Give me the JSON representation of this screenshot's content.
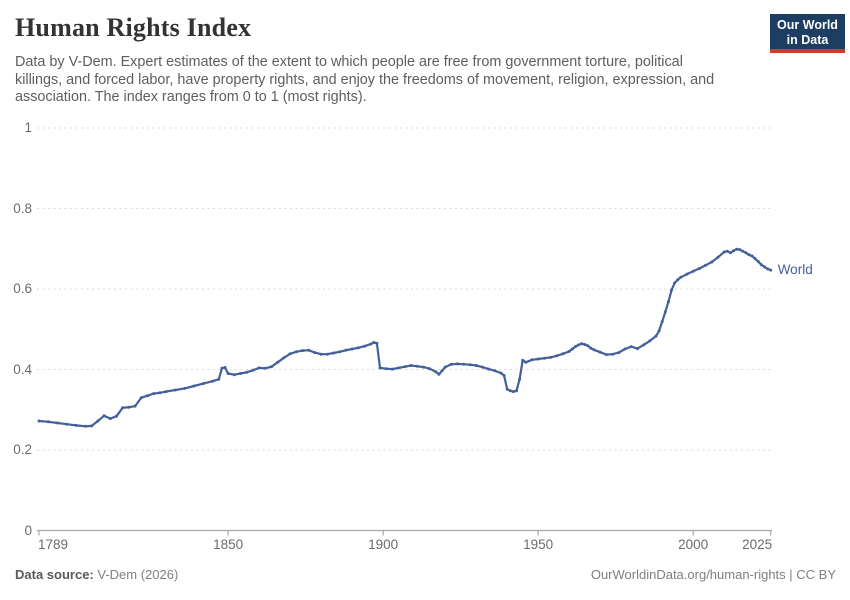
{
  "header": {
    "title": "Human Rights Index",
    "subtitle_lines": [
      "Data by V-Dem. Expert estimates of the extent to which people are free from government torture, political",
      "killings, and forced labor, have property rights, and enjoy the freedoms of movement, religion, expression, and",
      "association. The index ranges from 0 to 1 (most rights)."
    ],
    "logo": {
      "line1": "Our World",
      "line2": "in Data",
      "bg_color": "#1d3d63",
      "accent_color": "#d23a2f"
    }
  },
  "chart_data": {
    "type": "line",
    "title": "Human Rights Index",
    "series_label": "World",
    "xlabel": "",
    "ylabel": "",
    "xlim": [
      1789,
      2025
    ],
    "ylim": [
      0,
      1
    ],
    "x_ticks": [
      1789,
      1850,
      1900,
      1950,
      2000,
      2025
    ],
    "x_tick_labels": [
      "1789",
      "1850",
      "1900",
      "1950",
      "2000",
      "2025"
    ],
    "y_ticks": [
      0,
      0.2,
      0.4,
      0.6,
      0.8,
      1
    ],
    "y_tick_labels": [
      "0",
      "0.2",
      "0.4",
      "0.6",
      "0.8",
      "1"
    ],
    "grid": "horizontal-dashed",
    "legend_position": "end-of-line",
    "line_color": "#44609a",
    "grid_color": "#dadada",
    "axis_color": "#a8a8a8",
    "tick_label_color": "#6b6b6b",
    "points": [
      [
        1789,
        0.272
      ],
      [
        1792,
        0.27
      ],
      [
        1795,
        0.267
      ],
      [
        1798,
        0.264
      ],
      [
        1801,
        0.261
      ],
      [
        1804,
        0.259
      ],
      [
        1806,
        0.26
      ],
      [
        1808,
        0.272
      ],
      [
        1810,
        0.285
      ],
      [
        1812,
        0.278
      ],
      [
        1814,
        0.284
      ],
      [
        1816,
        0.305
      ],
      [
        1818,
        0.306
      ],
      [
        1820,
        0.309
      ],
      [
        1822,
        0.33
      ],
      [
        1824,
        0.335
      ],
      [
        1826,
        0.34
      ],
      [
        1828,
        0.342
      ],
      [
        1830,
        0.345
      ],
      [
        1833,
        0.349
      ],
      [
        1836,
        0.353
      ],
      [
        1839,
        0.359
      ],
      [
        1842,
        0.365
      ],
      [
        1845,
        0.371
      ],
      [
        1847,
        0.376
      ],
      [
        1848,
        0.403
      ],
      [
        1849,
        0.405
      ],
      [
        1850,
        0.39
      ],
      [
        1852,
        0.387
      ],
      [
        1854,
        0.39
      ],
      [
        1856,
        0.393
      ],
      [
        1858,
        0.398
      ],
      [
        1860,
        0.404
      ],
      [
        1862,
        0.403
      ],
      [
        1864,
        0.407
      ],
      [
        1866,
        0.418
      ],
      [
        1868,
        0.429
      ],
      [
        1870,
        0.439
      ],
      [
        1872,
        0.444
      ],
      [
        1874,
        0.447
      ],
      [
        1876,
        0.448
      ],
      [
        1878,
        0.442
      ],
      [
        1880,
        0.438
      ],
      [
        1882,
        0.438
      ],
      [
        1884,
        0.441
      ],
      [
        1886,
        0.444
      ],
      [
        1888,
        0.448
      ],
      [
        1890,
        0.451
      ],
      [
        1892,
        0.454
      ],
      [
        1894,
        0.458
      ],
      [
        1896,
        0.463
      ],
      [
        1897,
        0.467
      ],
      [
        1898,
        0.465
      ],
      [
        1899,
        0.404
      ],
      [
        1901,
        0.402
      ],
      [
        1903,
        0.401
      ],
      [
        1905,
        0.404
      ],
      [
        1907,
        0.407
      ],
      [
        1909,
        0.41
      ],
      [
        1911,
        0.408
      ],
      [
        1913,
        0.406
      ],
      [
        1915,
        0.402
      ],
      [
        1917,
        0.394
      ],
      [
        1918,
        0.388
      ],
      [
        1919,
        0.397
      ],
      [
        1920,
        0.406
      ],
      [
        1922,
        0.413
      ],
      [
        1924,
        0.414
      ],
      [
        1926,
        0.413
      ],
      [
        1928,
        0.412
      ],
      [
        1930,
        0.41
      ],
      [
        1932,
        0.406
      ],
      [
        1934,
        0.401
      ],
      [
        1936,
        0.397
      ],
      [
        1938,
        0.391
      ],
      [
        1939,
        0.385
      ],
      [
        1940,
        0.351
      ],
      [
        1941,
        0.347
      ],
      [
        1942,
        0.345
      ],
      [
        1943,
        0.347
      ],
      [
        1944,
        0.376
      ],
      [
        1945,
        0.423
      ],
      [
        1946,
        0.418
      ],
      [
        1948,
        0.424
      ],
      [
        1950,
        0.426
      ],
      [
        1952,
        0.428
      ],
      [
        1954,
        0.43
      ],
      [
        1956,
        0.434
      ],
      [
        1958,
        0.439
      ],
      [
        1960,
        0.445
      ],
      [
        1961,
        0.451
      ],
      [
        1962,
        0.457
      ],
      [
        1963,
        0.461
      ],
      [
        1964,
        0.464
      ],
      [
        1965,
        0.462
      ],
      [
        1966,
        0.459
      ],
      [
        1967,
        0.453
      ],
      [
        1968,
        0.449
      ],
      [
        1970,
        0.443
      ],
      [
        1972,
        0.437
      ],
      [
        1974,
        0.438
      ],
      [
        1976,
        0.442
      ],
      [
        1978,
        0.451
      ],
      [
        1980,
        0.457
      ],
      [
        1982,
        0.452
      ],
      [
        1984,
        0.461
      ],
      [
        1986,
        0.471
      ],
      [
        1988,
        0.483
      ],
      [
        1989,
        0.496
      ],
      [
        1990,
        0.519
      ],
      [
        1991,
        0.543
      ],
      [
        1992,
        0.568
      ],
      [
        1993,
        0.597
      ],
      [
        1994,
        0.615
      ],
      [
        1995,
        0.623
      ],
      [
        1996,
        0.629
      ],
      [
        1998,
        0.637
      ],
      [
        2000,
        0.644
      ],
      [
        2002,
        0.651
      ],
      [
        2004,
        0.659
      ],
      [
        2006,
        0.667
      ],
      [
        2008,
        0.679
      ],
      [
        2010,
        0.692
      ],
      [
        2011,
        0.694
      ],
      [
        2012,
        0.69
      ],
      [
        2013,
        0.695
      ],
      [
        2014,
        0.699
      ],
      [
        2015,
        0.698
      ],
      [
        2016,
        0.694
      ],
      [
        2017,
        0.69
      ],
      [
        2018,
        0.685
      ],
      [
        2019,
        0.682
      ],
      [
        2020,
        0.675
      ],
      [
        2021,
        0.668
      ],
      [
        2022,
        0.66
      ],
      [
        2023,
        0.655
      ],
      [
        2024,
        0.65
      ],
      [
        2025,
        0.647
      ]
    ]
  },
  "footer": {
    "source_label": "Data source:",
    "source_value": "V-Dem (2026)",
    "credit": "OurWorldinData.org/human-rights | CC BY"
  }
}
